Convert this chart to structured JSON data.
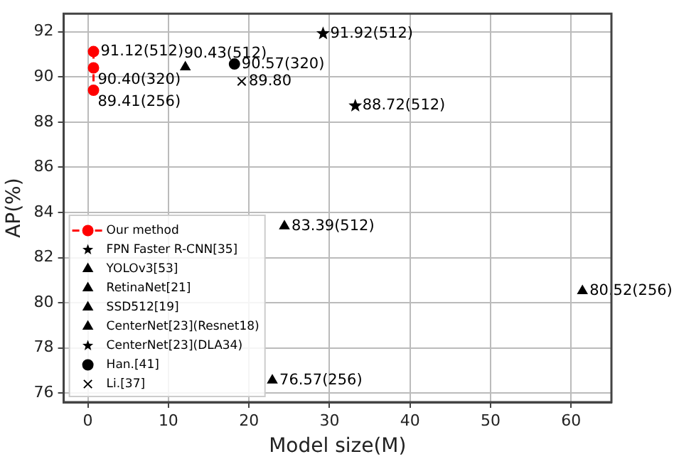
{
  "chart_data": {
    "type": "scatter",
    "xlabel": "Model size(M)",
    "ylabel": "AP(%)",
    "xlim": [
      -3,
      65
    ],
    "ylim": [
      75.6,
      92.8
    ],
    "xticks": [
      0,
      10,
      20,
      30,
      40,
      50,
      60
    ],
    "yticks": [
      76,
      78,
      80,
      82,
      84,
      86,
      88,
      90,
      92
    ],
    "grid": true,
    "legend": "bottom left",
    "series": [
      {
        "name": "Our method",
        "type": "line",
        "color": "#ff0000",
        "marker": "circle",
        "line_style": "dashed",
        "x": [
          0.7,
          0.7,
          0.7
        ],
        "values": [
          91.12,
          90.4,
          89.41
        ],
        "value_labels": [
          "91.12(512)",
          "90.40(320)",
          "89.41(256)"
        ]
      },
      {
        "name": "FPN Faster R-CNN[35]",
        "color": "#000000",
        "marker": "star",
        "x": [
          33.2
        ],
        "values": [
          88.72
        ],
        "value_labels": [
          "88.72(512)"
        ]
      },
      {
        "name": "YOLOv3[53]",
        "color": "#000000",
        "marker": "triangle",
        "x": [
          61.4
        ],
        "values": [
          80.52
        ],
        "value_labels": [
          "80.52(256)"
        ]
      },
      {
        "name": "RetinaNet[21]",
        "color": "#000000",
        "marker": "triangle",
        "x": [
          22.9
        ],
        "values": [
          76.57
        ],
        "value_labels": [
          "76.57(256)"
        ]
      },
      {
        "name": "SSD512[19]",
        "color": "#000000",
        "marker": "triangle",
        "x": [
          24.4
        ],
        "values": [
          83.39
        ],
        "value_labels": [
          "83.39(512)"
        ]
      },
      {
        "name": "CenterNet[23](Resnet18)",
        "color": "#000000",
        "marker": "triangle",
        "x": [
          12.1
        ],
        "values": [
          90.43
        ],
        "value_labels": [
          "90.43(512)"
        ]
      },
      {
        "name": "CenterNet[23](DLA34)",
        "color": "#000000",
        "marker": "star",
        "x": [
          29.2
        ],
        "values": [
          91.92
        ],
        "value_labels": [
          "91.92(512)"
        ]
      },
      {
        "name": "Han.[41]",
        "color": "#000000",
        "marker": "circle",
        "x": [
          18.2
        ],
        "values": [
          90.57
        ],
        "value_labels": [
          "90.57(320)"
        ]
      },
      {
        "name": "Li.[37]",
        "color": "#000000",
        "marker": "cross",
        "x": [
          19.1
        ],
        "values": [
          89.8
        ],
        "value_labels": [
          "89.80"
        ]
      }
    ]
  }
}
